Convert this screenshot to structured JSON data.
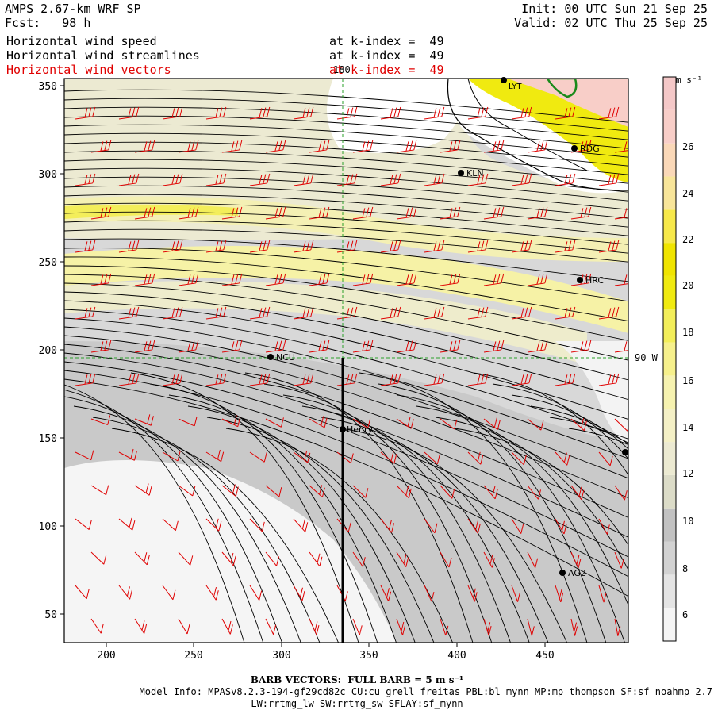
{
  "header": {
    "model_line": "AMPS 2.67-km WRF SP",
    "fcst_line": "Fcst:   98 h",
    "init_line": "Init: 00 UTC Sun 21 Sep 25",
    "valid_line": "Valid: 02 UTC Thu 25 Sep 25",
    "fields": [
      {
        "name": "Horizontal wind speed",
        "level": "at k-index =  49",
        "color": "#000000"
      },
      {
        "name": "Horizontal wind streamlines",
        "level": "at k-index =  49",
        "color": "#000000"
      },
      {
        "name": "Horizontal wind vectors",
        "level": "at k-index =  49",
        "color": "#e00000"
      }
    ]
  },
  "map": {
    "x_ticks": [
      "200",
      "250",
      "300",
      "350",
      "400",
      "450"
    ],
    "y_ticks": [
      "350",
      "300",
      "250",
      "200",
      "150",
      "100",
      "50"
    ],
    "meridian_label": "180",
    "parallel_label": "90 W",
    "stations": [
      {
        "name": "KLN"
      },
      {
        "name": "RDG"
      },
      {
        "name": "HRC"
      },
      {
        "name": "NCU"
      },
      {
        "name": "Henry"
      },
      {
        "name": "AG2"
      },
      {
        "name": "LYT"
      }
    ]
  },
  "colorbar": {
    "unit": "m s⁻¹",
    "labels": [
      "26",
      "24",
      "22",
      "20",
      "18",
      "16",
      "14",
      "12",
      "10",
      "8",
      "6"
    ],
    "colors": [
      "#f5f5f5",
      "#e4e4e4",
      "#d2d2d2",
      "#c2c2c2",
      "#dcdcc8",
      "#ecead2",
      "#f4f0c6",
      "#f6f2b0",
      "#f6f08c",
      "#f3ee5a",
      "#f0ea10",
      "#f0e400",
      "#f7e84a",
      "#f8e59a",
      "#fad8b8",
      "#f8cec8",
      "#f4c8c8"
    ]
  },
  "footer": {
    "barb_note": "BARB VECTORS:  FULL BARB = 5 m s⁻¹",
    "model_info_1": "Model Info: MPASv8.2.3-194-gf29cd82c CU:cu_grell_freitas PBL:bl_mynn MP:mp_thompson SF:sf_noahmp 2.7",
    "model_info_2": "LW:rrtmg_lw SW:rrtmg_sw SFLAY:sf_mynn"
  }
}
